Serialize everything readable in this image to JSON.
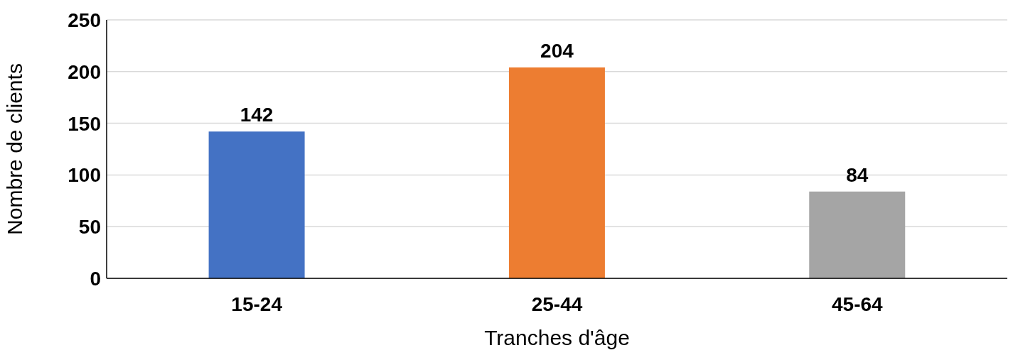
{
  "chart_data": {
    "type": "bar",
    "xlabel": "Tranches d'âge",
    "ylabel": "Nombre de clients",
    "categories": [
      "15-24",
      "25-44",
      "45-64"
    ],
    "values": [
      142,
      204,
      84
    ],
    "colors": [
      "#4472c4",
      "#ed7d31",
      "#a5a5a5"
    ],
    "ylim": [
      0,
      250
    ],
    "yticks": [
      0,
      50,
      100,
      150,
      200,
      250
    ],
    "grid": "y",
    "data_labels": true
  }
}
